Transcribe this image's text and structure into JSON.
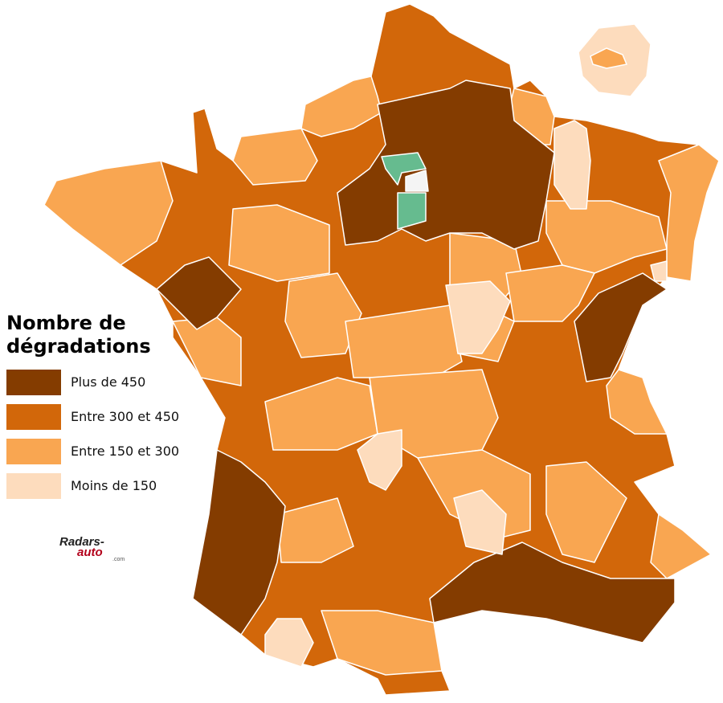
{
  "legend": {
    "title": "Nombre de dégradations",
    "items": [
      {
        "label": "Plus de 450",
        "color": "#843c00"
      },
      {
        "label": "Entre 300 et 450",
        "color": "#d2670a"
      },
      {
        "label": "Entre 150 et 300",
        "color": "#f9a651"
      },
      {
        "label": "Moins de 150",
        "color": "#fddcbd"
      }
    ]
  },
  "logo": {
    "name": "Radars-",
    "suffix": "auto",
    "domain": ".com"
  }
}
